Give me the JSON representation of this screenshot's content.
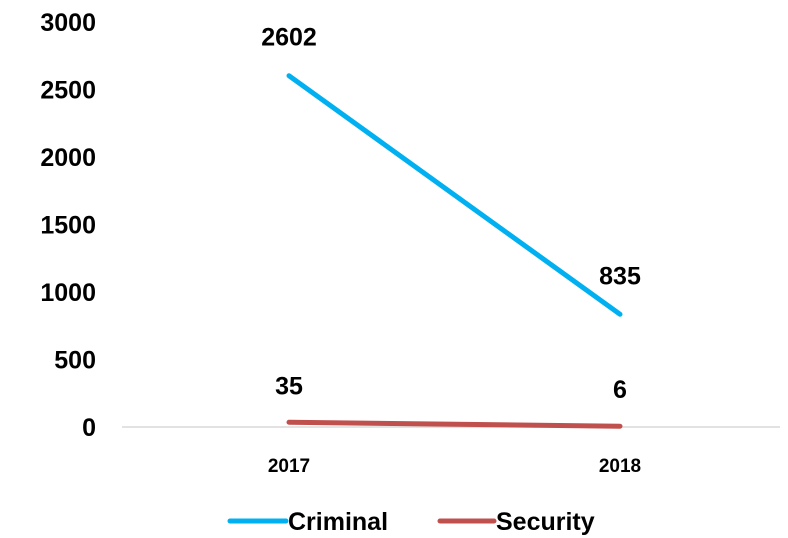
{
  "chart_data": {
    "type": "line",
    "categories": [
      "2017",
      "2018"
    ],
    "series": [
      {
        "name": "Criminal",
        "values": [
          2602,
          835
        ],
        "color": "#00B0F0"
      },
      {
        "name": "Security",
        "values": [
          35,
          6
        ],
        "color": "#C0504D"
      }
    ],
    "ylim": [
      0,
      3000
    ],
    "yticks": [
      0,
      500,
      1000,
      1500,
      2000,
      2500,
      3000
    ],
    "grid": false,
    "legend_position": "bottom",
    "data_labels": true
  }
}
